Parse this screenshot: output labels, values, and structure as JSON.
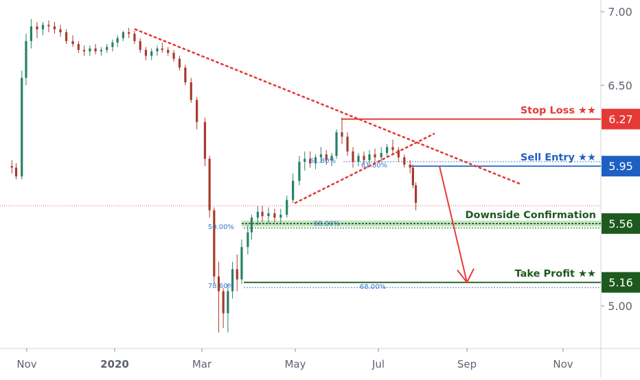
{
  "chart_data": {
    "type": "candlestick",
    "title": "",
    "xlabel": "",
    "ylabel": "",
    "x_ticks": [
      "Nov",
      "2020",
      "Mar",
      "May",
      "Jul",
      "Sep",
      "Nov"
    ],
    "y_ticks": [
      "7.00",
      "6.50",
      "5.00"
    ],
    "ylim": [
      4.7,
      7.1
    ],
    "grid": false,
    "colors": {
      "up": "#26806a",
      "down": "#a83a2a",
      "stop": "#e53935",
      "entry": "#1e5fc4",
      "profit": "#1e5a1e",
      "trend": "#e53935"
    },
    "series": [
      {
        "points": [
          {
            "d": "Oct 21",
            "o": 5.95,
            "h": 5.99,
            "l": 5.9,
            "c": 5.94
          },
          {
            "d": "Oct 24",
            "o": 5.94,
            "h": 5.97,
            "l": 5.86,
            "c": 5.88
          },
          {
            "d": "Oct 28",
            "o": 5.88,
            "h": 6.6,
            "l": 5.86,
            "c": 6.55
          },
          {
            "d": "Oct 31",
            "o": 6.55,
            "h": 6.85,
            "l": 6.5,
            "c": 6.8
          },
          {
            "d": "Nov 4",
            "o": 6.8,
            "h": 6.95,
            "l": 6.75,
            "c": 6.9
          },
          {
            "d": "Nov 8",
            "o": 6.9,
            "h": 6.93,
            "l": 6.82,
            "c": 6.88
          },
          {
            "d": "Nov 12",
            "o": 6.88,
            "h": 6.93,
            "l": 6.84,
            "c": 6.91
          },
          {
            "d": "Nov 16",
            "o": 6.91,
            "h": 6.94,
            "l": 6.86,
            "c": 6.9
          },
          {
            "d": "Nov 20",
            "o": 6.9,
            "h": 6.93,
            "l": 6.85,
            "c": 6.88
          },
          {
            "d": "Nov 24",
            "o": 6.88,
            "h": 6.91,
            "l": 6.83,
            "c": 6.86
          },
          {
            "d": "Nov 28",
            "o": 6.86,
            "h": 6.88,
            "l": 6.78,
            "c": 6.8
          },
          {
            "d": "Dec 2",
            "o": 6.8,
            "h": 6.84,
            "l": 6.76,
            "c": 6.78
          },
          {
            "d": "Dec 6",
            "o": 6.78,
            "h": 6.8,
            "l": 6.72,
            "c": 6.74
          },
          {
            "d": "Dec 10",
            "o": 6.74,
            "h": 6.77,
            "l": 6.7,
            "c": 6.73
          },
          {
            "d": "Dec 14",
            "o": 6.73,
            "h": 6.77,
            "l": 6.7,
            "c": 6.75
          },
          {
            "d": "Dec 18",
            "o": 6.75,
            "h": 6.78,
            "l": 6.71,
            "c": 6.73
          },
          {
            "d": "Dec 22",
            "o": 6.73,
            "h": 6.76,
            "l": 6.7,
            "c": 6.74
          },
          {
            "d": "Dec 26",
            "o": 6.74,
            "h": 6.78,
            "l": 6.72,
            "c": 6.76
          },
          {
            "d": "Dec 30",
            "o": 6.76,
            "h": 6.81,
            "l": 6.73,
            "c": 6.79
          },
          {
            "d": "Jan 3",
            "o": 6.79,
            "h": 6.84,
            "l": 6.76,
            "c": 6.82
          },
          {
            "d": "Jan 7",
            "o": 6.82,
            "h": 6.87,
            "l": 6.8,
            "c": 6.86
          },
          {
            "d": "Jan 11",
            "o": 6.86,
            "h": 6.89,
            "l": 6.82,
            "c": 6.85
          },
          {
            "d": "Jan 15",
            "o": 6.85,
            "h": 6.87,
            "l": 6.78,
            "c": 6.8
          },
          {
            "d": "Jan 19",
            "o": 6.8,
            "h": 6.82,
            "l": 6.72,
            "c": 6.74
          },
          {
            "d": "Jan 23",
            "o": 6.74,
            "h": 6.76,
            "l": 6.67,
            "c": 6.7
          },
          {
            "d": "Jan 27",
            "o": 6.7,
            "h": 6.75,
            "l": 6.67,
            "c": 6.73
          },
          {
            "d": "Jan 31",
            "o": 6.73,
            "h": 6.77,
            "l": 6.7,
            "c": 6.75
          },
          {
            "d": "Feb 4",
            "o": 6.75,
            "h": 6.79,
            "l": 6.72,
            "c": 6.74
          },
          {
            "d": "Feb 8",
            "o": 6.74,
            "h": 6.76,
            "l": 6.7,
            "c": 6.72
          },
          {
            "d": "Feb 12",
            "o": 6.72,
            "h": 6.74,
            "l": 6.66,
            "c": 6.68
          },
          {
            "d": "Feb 16",
            "o": 6.68,
            "h": 6.7,
            "l": 6.6,
            "c": 6.62
          },
          {
            "d": "Feb 20",
            "o": 6.62,
            "h": 6.64,
            "l": 6.5,
            "c": 6.52
          },
          {
            "d": "Feb 24",
            "o": 6.52,
            "h": 6.55,
            "l": 6.38,
            "c": 6.4
          },
          {
            "d": "Feb 28",
            "o": 6.4,
            "h": 6.42,
            "l": 6.2,
            "c": 6.25
          },
          {
            "d": "Mar 3",
            "o": 6.25,
            "h": 6.28,
            "l": 5.95,
            "c": 6.0
          },
          {
            "d": "Mar 6",
            "o": 6.0,
            "h": 6.02,
            "l": 5.6,
            "c": 5.65
          },
          {
            "d": "Mar 9",
            "o": 5.65,
            "h": 5.67,
            "l": 5.15,
            "c": 5.2
          },
          {
            "d": "Mar 12",
            "o": 5.2,
            "h": 5.3,
            "l": 4.82,
            "c": 5.1
          },
          {
            "d": "Mar 15",
            "o": 5.1,
            "h": 5.12,
            "l": 4.85,
            "c": 4.95
          },
          {
            "d": "Mar 18",
            "o": 4.95,
            "h": 5.15,
            "l": 4.82,
            "c": 5.1
          },
          {
            "d": "Mar 21",
            "o": 5.1,
            "h": 5.3,
            "l": 5.05,
            "c": 5.25
          },
          {
            "d": "Mar 24",
            "o": 5.25,
            "h": 5.35,
            "l": 5.1,
            "c": 5.18
          },
          {
            "d": "Mar 27",
            "o": 5.18,
            "h": 5.45,
            "l": 5.15,
            "c": 5.4
          },
          {
            "d": "Mar 31",
            "o": 5.4,
            "h": 5.55,
            "l": 5.35,
            "c": 5.5
          },
          {
            "d": "Apr 3",
            "o": 5.5,
            "h": 5.62,
            "l": 5.45,
            "c": 5.6
          },
          {
            "d": "Apr 7",
            "o": 5.6,
            "h": 5.68,
            "l": 5.55,
            "c": 5.64
          },
          {
            "d": "Apr 10",
            "o": 5.64,
            "h": 5.68,
            "l": 5.57,
            "c": 5.61
          },
          {
            "d": "Apr 14",
            "o": 5.61,
            "h": 5.67,
            "l": 5.56,
            "c": 5.63
          },
          {
            "d": "Apr 18",
            "o": 5.63,
            "h": 5.66,
            "l": 5.57,
            "c": 5.6
          },
          {
            "d": "Apr 22",
            "o": 5.6,
            "h": 5.66,
            "l": 5.56,
            "c": 5.62
          },
          {
            "d": "Apr 26",
            "o": 5.62,
            "h": 5.75,
            "l": 5.6,
            "c": 5.72
          },
          {
            "d": "Apr 30",
            "o": 5.72,
            "h": 5.9,
            "l": 5.7,
            "c": 5.85
          },
          {
            "d": "May 4",
            "o": 5.85,
            "h": 6.02,
            "l": 5.82,
            "c": 5.98
          },
          {
            "d": "May 8",
            "o": 5.98,
            "h": 6.05,
            "l": 5.92,
            "c": 6.0
          },
          {
            "d": "May 12",
            "o": 6.0,
            "h": 6.05,
            "l": 5.94,
            "c": 5.97
          },
          {
            "d": "May 16",
            "o": 5.97,
            "h": 6.03,
            "l": 5.93,
            "c": 6.01
          },
          {
            "d": "May 20",
            "o": 6.01,
            "h": 6.08,
            "l": 5.97,
            "c": 6.03
          },
          {
            "d": "May 24",
            "o": 6.03,
            "h": 6.06,
            "l": 5.96,
            "c": 5.99
          },
          {
            "d": "May 28",
            "o": 5.99,
            "h": 6.04,
            "l": 5.95,
            "c": 6.02
          },
          {
            "d": "Jun 1",
            "o": 6.02,
            "h": 6.2,
            "l": 6.0,
            "c": 6.18
          },
          {
            "d": "Jun 5",
            "o": 6.18,
            "h": 6.28,
            "l": 6.1,
            "c": 6.15
          },
          {
            "d": "Jun 9",
            "o": 6.15,
            "h": 6.18,
            "l": 6.02,
            "c": 6.05
          },
          {
            "d": "Jun 13",
            "o": 6.05,
            "h": 6.08,
            "l": 5.94,
            "c": 5.98
          },
          {
            "d": "Jun 17",
            "o": 5.98,
            "h": 6.04,
            "l": 5.95,
            "c": 6.02
          },
          {
            "d": "Jun 21",
            "o": 6.02,
            "h": 6.05,
            "l": 5.96,
            "c": 5.99
          },
          {
            "d": "Jun 25",
            "o": 5.99,
            "h": 6.06,
            "l": 5.96,
            "c": 6.03
          },
          {
            "d": "Jun 29",
            "o": 6.03,
            "h": 6.07,
            "l": 5.98,
            "c": 6.01
          },
          {
            "d": "Jul 3",
            "o": 6.01,
            "h": 6.08,
            "l": 5.98,
            "c": 6.04
          },
          {
            "d": "Jul 7",
            "o": 6.04,
            "h": 6.1,
            "l": 6.01,
            "c": 6.08
          },
          {
            "d": "Jul 11",
            "o": 6.08,
            "h": 6.13,
            "l": 6.03,
            "c": 6.06
          },
          {
            "d": "Jul 15",
            "o": 6.06,
            "h": 6.08,
            "l": 5.98,
            "c": 6.01
          },
          {
            "d": "Jul 19",
            "o": 6.01,
            "h": 6.03,
            "l": 5.94,
            "c": 5.96
          },
          {
            "d": "Jul 23",
            "o": 5.96,
            "h": 5.99,
            "l": 5.9,
            "c": 5.94
          },
          {
            "d": "Jul 25",
            "o": 5.94,
            "h": 5.96,
            "l": 5.8,
            "c": 5.82
          },
          {
            "d": "Jul 27",
            "o": 5.82,
            "h": 5.84,
            "l": 5.65,
            "c": 5.7
          }
        ]
      }
    ],
    "levels": [
      {
        "name": "Stop Loss ★★",
        "value": 6.27,
        "label": "6.27"
      },
      {
        "name": "Sell Entry ★★",
        "value": 5.95,
        "label": "5.95"
      },
      {
        "name": "Downside Confirmation",
        "value": 5.56,
        "label": "5.56"
      },
      {
        "name": "Take Profit ★★",
        "value": 5.16,
        "label": "5.16"
      }
    ],
    "fib_labels": [
      "61.80%",
      "61.80%",
      "50.00%",
      "68.00%",
      "78.60%",
      "68.00%"
    ]
  }
}
